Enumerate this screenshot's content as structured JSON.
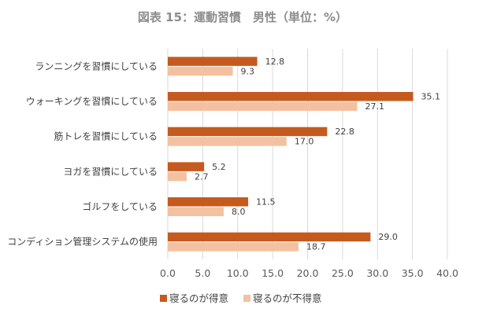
{
  "chart_data": {
    "type": "bar",
    "orientation": "horizontal",
    "title": "図表 15：運動習慣　男性（単位：%）",
    "categories": [
      "ランニングを習慣にしている",
      "ウォーキングを習慣にしている",
      "筋トレを習慣にしている",
      "ヨガを習慣にしている",
      "ゴルフをしている",
      "コンディション管理システムの使用"
    ],
    "series": [
      {
        "name": "寝るのが得意",
        "values": [
          12.8,
          35.1,
          22.8,
          5.2,
          11.5,
          29.0
        ],
        "labels": [
          "12.8",
          "35.1",
          "22.8",
          "5.2",
          "11.5",
          "29.0"
        ],
        "color": "#c55a1f"
      },
      {
        "name": "寝るのが不得意",
        "values": [
          9.3,
          27.1,
          17.0,
          2.7,
          8.0,
          18.7
        ],
        "labels": [
          "9.3",
          "27.1",
          "17.0",
          "2.7",
          "8.0",
          "18.7"
        ],
        "color": "#f4c1a0"
      }
    ],
    "xlim": [
      0,
      40
    ],
    "xticks": [
      "0.0",
      "5.0",
      "10.0",
      "15.0",
      "20.0",
      "25.0",
      "30.0",
      "35.0",
      "40.0"
    ],
    "grid": true,
    "legend": "bottom"
  }
}
